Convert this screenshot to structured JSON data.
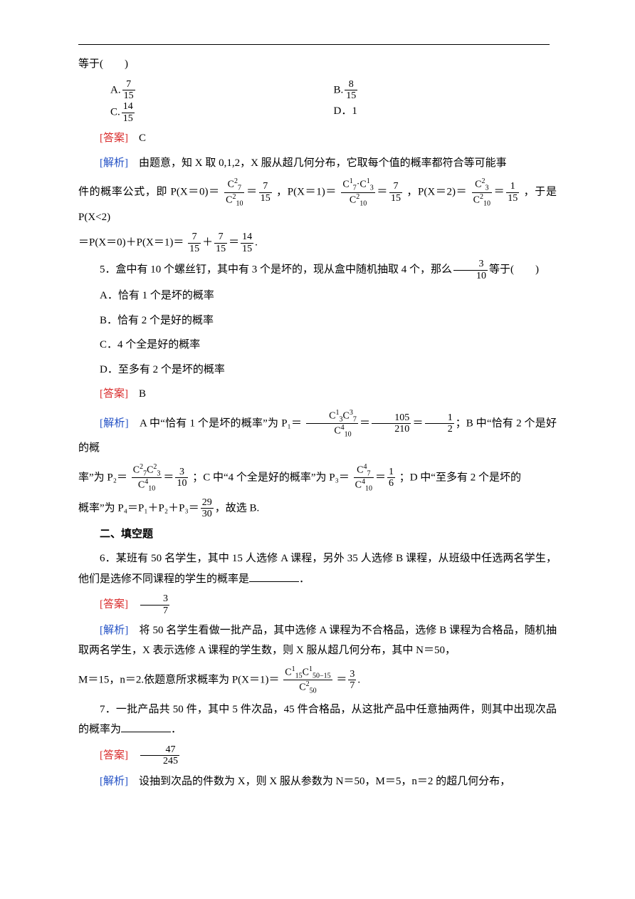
{
  "q4_continuation": "等于(　　)",
  "q4_options": {
    "A_label": "A.",
    "A_num": "7",
    "A_den": "15",
    "B_label": "B.",
    "B_num": "8",
    "B_den": "15",
    "C_label": "C.",
    "C_num": "14",
    "C_den": "15",
    "D_label": "D．1"
  },
  "answer_label": "[答案]",
  "analysis_label": "[解析]",
  "q4_answer": "　C",
  "q4_analysis_1": "　由题意，知 X 取 0,1,2，X 服从超几何分布，它取每个值的概率都符合等可能事",
  "q4_analysis_2a": "件的概率公式，即 P(X＝0)＝",
  "q4_analysis_2b": "，P(X＝1)＝",
  "q4_analysis_2c": "，P(X＝2)＝",
  "q4_analysis_2d": "，于是 P(X<2)",
  "q4_analysis_3a": "＝P(X＝0)＋P(X＝1)＝",
  "q4_analysis_3b": ".",
  "frac_7_15_n": "7",
  "frac_7_15_d": "15",
  "frac_1_15_n": "1",
  "frac_1_15_d": "15",
  "frac_14_15_n": "14",
  "frac_14_15_d": "15",
  "C2_7": "C",
  "C2_7_t": "2",
  "C2_7_b": "7",
  "C2_10": "C",
  "C2_10_t": "2",
  "C2_10_b": "10",
  "C1_7": "C",
  "C1_7_t": "1",
  "C1_7_b": "7",
  "C1_3": "C",
  "C1_3_t": "1",
  "C1_3_b": "3",
  "C2_3": "C",
  "C2_3_t": "2",
  "C2_3_b": "3",
  "q5_text_a": "5．盒中有 10 个螺丝钉，其中有 3 个是坏的，现从盒中随机抽取 4 个，那么",
  "q5_text_b": "等于(　　)",
  "frac_3_10_n": "3",
  "frac_3_10_d": "10",
  "q5_A": "A．恰有 1 个是坏的概率",
  "q5_B": "B．恰有 2 个是好的概率",
  "q5_C": "C．4 个全是好的概率",
  "q5_D": "D．至多有 2 个是坏的概率",
  "q5_answer": "　B",
  "q5_analysis_1a": "　A 中“恰有 1 个是坏的概率”为 P₁＝",
  "q5_analysis_1b": "；B 中“恰有 2 个是好的概",
  "q5_analysis_2a": "率”为 P₂＝",
  "q5_analysis_2b": "；C 中“4 个全是好的概率”为 P₃＝",
  "q5_analysis_2c": "；D 中“至多有 2 个是坏的",
  "q5_analysis_3a": "概率”为 P₄＝P₁＋P₂＋P₃＝",
  "q5_analysis_3b": "，故选 B.",
  "frac_105_210_n": "105",
  "frac_105_210_d": "210",
  "frac_1_2_n": "1",
  "frac_1_2_d": "2",
  "frac_1_6_n": "1",
  "frac_1_6_d": "6",
  "frac_29_30_n": "29",
  "frac_29_30_d": "30",
  "C1_3b": "C",
  "C3_3": "C",
  "C3_3_t": "3",
  "C3_3_b": "7",
  "C3_7_t": "3",
  "C3_7_b": "7",
  "C4_10_t": "4",
  "C4_10_b": "10",
  "C2_7b_t": "2",
  "C2_7b_b": "7",
  "C2_3b_t": "2",
  "C2_3b_b": "3",
  "C4_7_t": "4",
  "C4_7_b": "7",
  "section2": "二、填空题",
  "q6_text": "6．某班有 50 名学生，其中 15 人选修 A 课程，另外 35 人选修 B 课程，从班级中任选两名学生，他们是选修不同课程的学生的概率是",
  "q6_text_end": "．",
  "q6_ans_n": "3",
  "q6_ans_d": "7",
  "q6_analysis_1": "　将 50 名学生看做一批产品，其中选修 A 课程为不合格品，选修 B 课程为合格品，随机抽取两名学生，X 表示选修 A 课程的学生数，则 X 服从超几何分布，其中 N＝50，",
  "q6_analysis_2a": "M＝15，n＝2.依题意所求概率为 P(X＝1)＝",
  "q6_analysis_2b": "＝",
  "q6_analysis_2c": ".",
  "C1_15_t": "1",
  "C1_15_b": "15",
  "C50m15_t": "1",
  "C50m15_b": "50−15",
  "C2_50_t": "2",
  "C2_50_b": "50",
  "q7_text": "7．一批产品共 50 件，其中 5 件次品，45 件合格品，从这批产品中任意抽两件，则其中出现次品的概率为",
  "q7_text_end": "．",
  "q7_ans_n": "47",
  "q7_ans_d": "245",
  "q7_analysis": "　设抽到次品的件数为 X，则 X 服从参数为 N＝50，M＝5，n＝2 的超几何分布，"
}
